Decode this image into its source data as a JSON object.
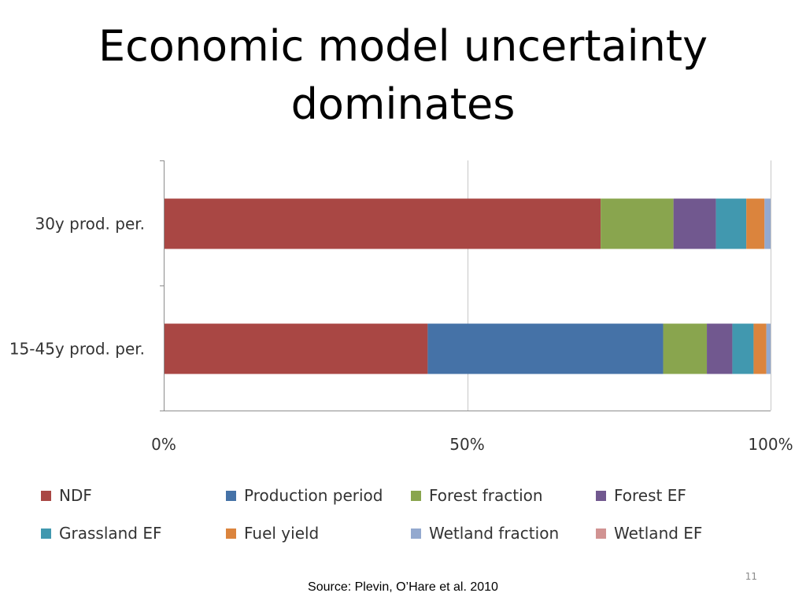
{
  "slide": {
    "title_lines": [
      "Economic model uncertainty",
      "dominates"
    ],
    "source": "Source: Plevin, O’Hare et al. 2010",
    "page_number": "11"
  },
  "chart_data": {
    "type": "bar",
    "orientation": "horizontal",
    "stacked": true,
    "percent": true,
    "categories": [
      "30y prod. per.",
      "15-45y prod. per."
    ],
    "series": [
      {
        "name": "NDF",
        "color": "#A94744",
        "values": [
          72,
          43.5
        ]
      },
      {
        "name": "Production period",
        "color": "#4572A7",
        "values": [
          0,
          38.8
        ]
      },
      {
        "name": "Forest fraction",
        "color": "#89A54E",
        "values": [
          12,
          7.2
        ]
      },
      {
        "name": "Forest EF",
        "color": "#71588F",
        "values": [
          7,
          4.2
        ]
      },
      {
        "name": "Grassland EF",
        "color": "#4198AF",
        "values": [
          5,
          3.5
        ]
      },
      {
        "name": "Fuel yield",
        "color": "#DB843D",
        "values": [
          3,
          2.1
        ]
      },
      {
        "name": "Wetland fraction",
        "color": "#93A9CF",
        "values": [
          1,
          0.7
        ]
      },
      {
        "name": "Wetland EF",
        "color": "#D19392",
        "values": [
          0,
          0
        ]
      }
    ],
    "xlim": [
      0,
      100
    ],
    "x_ticks": [
      0,
      50,
      100
    ],
    "x_tick_labels": [
      "0%",
      "50%",
      "100%"
    ],
    "grid": true,
    "legend_position": "bottom",
    "xlabel": "",
    "ylabel": "",
    "title": ""
  }
}
